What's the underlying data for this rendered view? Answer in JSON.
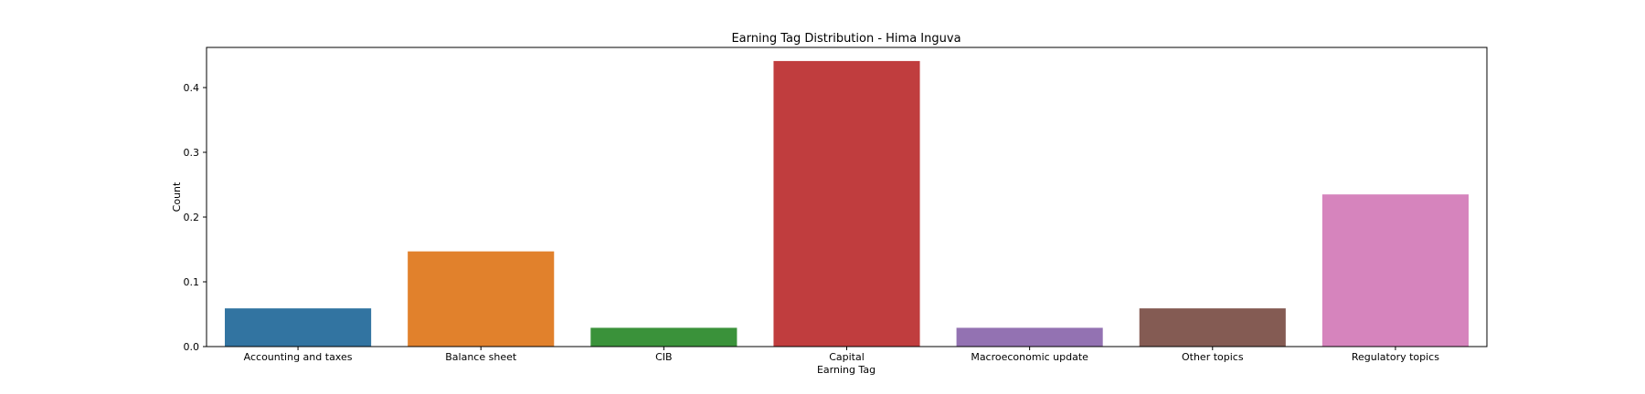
{
  "chart_data": {
    "type": "bar",
    "title": "Earning Tag Distribution - Hima Inguva",
    "xlabel": "Earning Tag",
    "ylabel": "Count",
    "categories": [
      "Accounting and taxes",
      "Balance sheet",
      "CIB",
      "Capital",
      "Macroeconomic update",
      "Other topics",
      "Regulatory topics"
    ],
    "values": [
      0.059,
      0.147,
      0.029,
      0.441,
      0.029,
      0.059,
      0.235
    ],
    "colors": [
      "#3274a1",
      "#e1812c",
      "#3a923a",
      "#c03d3e",
      "#9372b2",
      "#845b53",
      "#d684bd"
    ],
    "ylim": [
      0,
      0.462
    ],
    "yticks": [
      0.0,
      0.1,
      0.2,
      0.3,
      0.4
    ],
    "ytick_labels": [
      "0.0",
      "0.1",
      "0.2",
      "0.3",
      "0.4"
    ],
    "grid": false,
    "legend": "none"
  }
}
